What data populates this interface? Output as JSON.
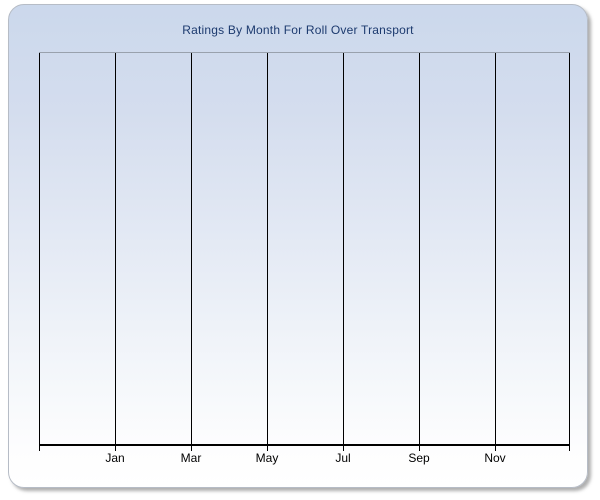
{
  "chart_data": {
    "type": "line",
    "title": "Ratings By Month For Roll Over Transport",
    "x_tick_labels": [
      "Jan",
      "Mar",
      "May",
      "Jul",
      "Sep",
      "Nov"
    ],
    "series": [],
    "plot_empty": true,
    "layout": {
      "grid_vertical": true,
      "grid_horizontal": false,
      "legend": "none",
      "y_tick_labels_visible": false
    },
    "colors": {
      "title_text": "#1c3a6e",
      "gridline": "#000000",
      "axis_line": "#000000",
      "tick_label_text": "#000000",
      "plot_top_border": "#99a1ad",
      "panel_border": "#b6bcc6",
      "panel_gradient_top": "#cbd8ec",
      "panel_gradient_bottom": "#ffffff",
      "page_background": "#ffffff"
    }
  }
}
